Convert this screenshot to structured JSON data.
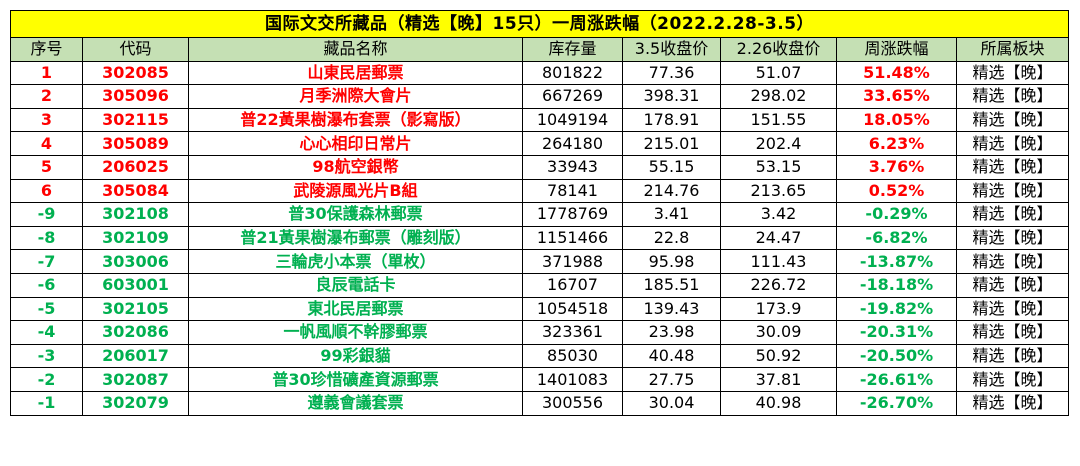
{
  "title": "国际文交所藏品（精选【晚】15只）一周涨跌幅（2022.2.28-3.5）",
  "headers": [
    "序号",
    "代码",
    "藏品名称",
    "库存量",
    "3.5收盘价",
    "2.26收盘价",
    "周涨跌幅",
    "所属板块"
  ],
  "colors": {
    "up": "#ff0000",
    "down": "#00b050",
    "title_bg": "#ffff00",
    "header_bg": "#c5e0b4"
  },
  "rows": [
    {
      "no": "1",
      "code": "302085",
      "name": "山東民居郵票",
      "stock": "801822",
      "close_35": "77.36",
      "close_226": "51.07",
      "change": "51.48%",
      "board": "精选【晚】",
      "trend": "up"
    },
    {
      "no": "2",
      "code": "305096",
      "name": "月季洲際大會片",
      "stock": "667269",
      "close_35": "398.31",
      "close_226": "298.02",
      "change": "33.65%",
      "board": "精选【晚】",
      "trend": "up"
    },
    {
      "no": "3",
      "code": "302115",
      "name": "普22黃果樹瀑布套票（影寫版）",
      "stock": "1049194",
      "close_35": "178.91",
      "close_226": "151.55",
      "change": "18.05%",
      "board": "精选【晚】",
      "trend": "up"
    },
    {
      "no": "4",
      "code": "305089",
      "name": "心心相印日常片",
      "stock": "264180",
      "close_35": "215.01",
      "close_226": "202.4",
      "change": "6.23%",
      "board": "精选【晚】",
      "trend": "up"
    },
    {
      "no": "5",
      "code": "206025",
      "name": "98航空銀幣",
      "stock": "33943",
      "close_35": "55.15",
      "close_226": "53.15",
      "change": "3.76%",
      "board": "精选【晚】",
      "trend": "up"
    },
    {
      "no": "6",
      "code": "305084",
      "name": "武陵源風光片B組",
      "stock": "78141",
      "close_35": "214.76",
      "close_226": "213.65",
      "change": "0.52%",
      "board": "精选【晚】",
      "trend": "up"
    },
    {
      "no": "-9",
      "code": "302108",
      "name": "普30保護森林郵票",
      "stock": "1778769",
      "close_35": "3.41",
      "close_226": "3.42",
      "change": "-0.29%",
      "board": "精选【晚】",
      "trend": "down"
    },
    {
      "no": "-8",
      "code": "302109",
      "name": "普21黃果樹瀑布郵票（雕刻版）",
      "stock": "1151466",
      "close_35": "22.8",
      "close_226": "24.47",
      "change": "-6.82%",
      "board": "精选【晚】",
      "trend": "down"
    },
    {
      "no": "-7",
      "code": "303006",
      "name": "三輪虎小本票（單枚）",
      "stock": "371988",
      "close_35": "95.98",
      "close_226": "111.43",
      "change": "-13.87%",
      "board": "精选【晚】",
      "trend": "down"
    },
    {
      "no": "-6",
      "code": "603001",
      "name": "良辰電話卡",
      "stock": "16707",
      "close_35": "185.51",
      "close_226": "226.72",
      "change": "-18.18%",
      "board": "精选【晚】",
      "trend": "down"
    },
    {
      "no": "-5",
      "code": "302105",
      "name": "東北民居郵票",
      "stock": "1054518",
      "close_35": "139.43",
      "close_226": "173.9",
      "change": "-19.82%",
      "board": "精选【晚】",
      "trend": "down"
    },
    {
      "no": "-4",
      "code": "302086",
      "name": "一帆風順不幹膠郵票",
      "stock": "323361",
      "close_35": "23.98",
      "close_226": "30.09",
      "change": "-20.31%",
      "board": "精选【晚】",
      "trend": "down"
    },
    {
      "no": "-3",
      "code": "206017",
      "name": "99彩銀貓",
      "stock": "85030",
      "close_35": "40.48",
      "close_226": "50.92",
      "change": "-20.50%",
      "board": "精选【晚】",
      "trend": "down"
    },
    {
      "no": "-2",
      "code": "302087",
      "name": "普30珍惜礦產資源郵票",
      "stock": "1401083",
      "close_35": "27.75",
      "close_226": "37.81",
      "change": "-26.61%",
      "board": "精选【晚】",
      "trend": "down"
    },
    {
      "no": "-1",
      "code": "302079",
      "name": "遵義會議套票",
      "stock": "300556",
      "close_35": "30.04",
      "close_226": "40.98",
      "change": "-26.70%",
      "board": "精选【晚】",
      "trend": "down"
    }
  ]
}
